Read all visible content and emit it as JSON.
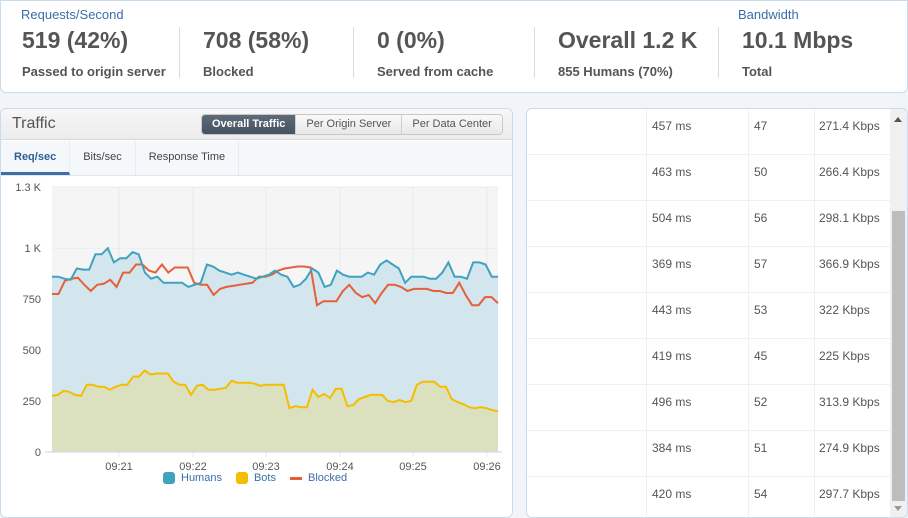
{
  "summary": {
    "requests_label": "Requests/Second",
    "bandwidth_label": "Bandwidth",
    "stats": [
      {
        "value": "519 (42%)",
        "label": "Passed to origin server"
      },
      {
        "value": "708 (58%)",
        "label": "Blocked"
      },
      {
        "value": "0 (0%)",
        "label": "Served from cache"
      },
      {
        "value": "Overall 1.2 K",
        "label": "855 Humans (70%)"
      },
      {
        "value": "10.1 Mbps",
        "label": "Total"
      }
    ]
  },
  "traffic": {
    "title": "Traffic",
    "segments": [
      "Overall Traffic",
      "Per Origin Server",
      "Per Data Center"
    ],
    "active_segment": "Overall Traffic",
    "tabs": [
      "Req/sec",
      "Bits/sec",
      "Response Time"
    ],
    "active_tab": "Req/sec",
    "legend": [
      "Humans",
      "Bots",
      "Blocked"
    ]
  },
  "colors": {
    "humans": "#3fa2bf",
    "bots": "#f5bd00",
    "blocked": "#e5603a",
    "accent": "#3c6eaa"
  },
  "chart_data": {
    "type": "line",
    "title": "Traffic - Req/sec",
    "xlabel": "",
    "ylabel": "",
    "ylim": [
      0,
      1300
    ],
    "y_ticks": [
      "0",
      "250",
      "500",
      "750",
      "1 K",
      "1.3 K"
    ],
    "x_ticks": [
      "09:21",
      "09:22",
      "09:23",
      "09:24",
      "09:25",
      "09:26"
    ],
    "grid": true,
    "legend_position": "bottom",
    "series": [
      {
        "name": "Humans",
        "values": [
          860,
          860,
          850,
          845,
          900,
          895,
          895,
          970,
          970,
          1000,
          930,
          950,
          950,
          980,
          970,
          880,
          850,
          860,
          830,
          830,
          830,
          830,
          810,
          820,
          830,
          920,
          910,
          890,
          880,
          870,
          880,
          870,
          860,
          850,
          860,
          870,
          890,
          870,
          860,
          810,
          820,
          850,
          900,
          880,
          810,
          820,
          890,
          870,
          860,
          860,
          860,
          880,
          870,
          920,
          940,
          920,
          900,
          830,
          860,
          860,
          860,
          850,
          850,
          880,
          930,
          860,
          860,
          850,
          930,
          930,
          920,
          860,
          860
        ]
      },
      {
        "name": "Bots",
        "values": [
          275,
          280,
          300,
          295,
          280,
          275,
          330,
          330,
          320,
          320,
          305,
          320,
          330,
          330,
          370,
          370,
          400,
          380,
          385,
          385,
          385,
          345,
          330,
          330,
          280,
          325,
          330,
          305,
          305,
          310,
          315,
          350,
          340,
          340,
          340,
          335,
          325,
          330,
          330,
          330,
          330,
          215,
          225,
          220,
          220,
          305,
          270,
          285,
          265,
          310,
          310,
          225,
          230,
          260,
          270,
          280,
          280,
          280,
          250,
          245,
          255,
          245,
          250,
          330,
          345,
          345,
          345,
          320,
          320,
          260,
          245,
          235,
          220,
          215,
          220,
          215,
          205,
          200
        ]
      },
      {
        "name": "Blocked",
        "values": [
          775,
          775,
          840,
          850,
          855,
          820,
          790,
          820,
          825,
          845,
          810,
          880,
          880,
          920,
          920,
          890,
          880,
          920,
          880,
          905,
          905,
          905,
          830,
          820,
          820,
          770,
          800,
          810,
          815,
          820,
          825,
          830,
          860,
          860,
          870,
          890,
          900,
          905,
          910,
          910,
          905,
          720,
          740,
          740,
          740,
          790,
          820,
          780,
          760,
          770,
          730,
          780,
          820,
          820,
          810,
          790,
          800,
          800,
          800,
          790,
          790,
          780,
          780,
          830,
          770,
          720,
          720,
          760,
          760,
          730
        ]
      }
    ]
  },
  "table": {
    "rows": [
      {
        "col1": "",
        "time": "457 ms",
        "count": "47",
        "bandwidth": "271.4 Kbps"
      },
      {
        "col1": "",
        "time": "463 ms",
        "count": "50",
        "bandwidth": "266.4 Kbps"
      },
      {
        "col1": "",
        "time": "504 ms",
        "count": "56",
        "bandwidth": "298.1 Kbps"
      },
      {
        "col1": "",
        "time": "369 ms",
        "count": "57",
        "bandwidth": "366.9 Kbps"
      },
      {
        "col1": "",
        "time": "443 ms",
        "count": "53",
        "bandwidth": "322 Kbps"
      },
      {
        "col1": "",
        "time": "419 ms",
        "count": "45",
        "bandwidth": "225 Kbps"
      },
      {
        "col1": "",
        "time": "496 ms",
        "count": "52",
        "bandwidth": "313.9 Kbps"
      },
      {
        "col1": "",
        "time": "384 ms",
        "count": "51",
        "bandwidth": "274.9 Kbps"
      },
      {
        "col1": "",
        "time": "420 ms",
        "count": "54",
        "bandwidth": "297.7 Kbps"
      }
    ]
  }
}
